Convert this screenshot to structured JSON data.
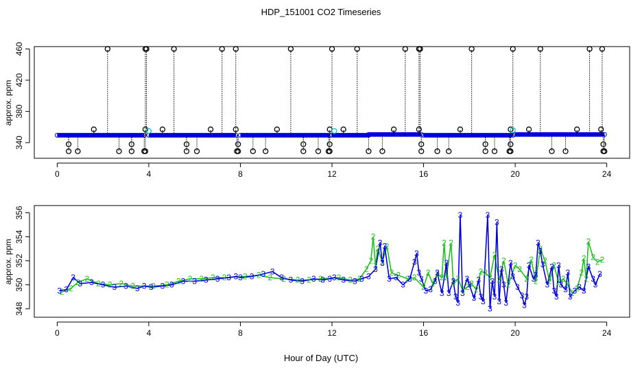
{
  "title": "HDP_151001  CO2 Timeseries",
  "xlabel": "Hour of Day (UTC)",
  "colors": {
    "axis": "#000000",
    "black_series": "#000000",
    "cyan_series": "#00c8d2",
    "green_series": "#1fbf1f",
    "blue_series": "#0000dd"
  },
  "chart_data": [
    {
      "type": "scatter",
      "panel": "top",
      "ylabel": "approx. ppm",
      "xlim": [
        -1,
        25
      ],
      "ylim": [
        320,
        463
      ],
      "xticks": [
        0,
        4,
        8,
        12,
        16,
        20,
        24
      ],
      "yticks": [
        340,
        380,
        420,
        460
      ],
      "baseline_segments": [
        {
          "x0": 0.0,
          "x1": 3.8,
          "y": 349.5
        },
        {
          "x0": 4.0,
          "x1": 7.8,
          "y": 349.5
        },
        {
          "x0": 8.0,
          "x1": 11.9,
          "y": 349.5
        },
        {
          "x0": 12.0,
          "x1": 13.6,
          "y": 349.5
        },
        {
          "x0": 13.6,
          "x1": 15.9,
          "y": 350.5
        },
        {
          "x0": 16.0,
          "x1": 19.9,
          "y": 349.5
        },
        {
          "x0": 20.0,
          "x1": 23.9,
          "y": 350.5
        }
      ],
      "spikes_high": [
        2.2,
        3.85,
        3.9,
        5.1,
        7.2,
        7.8,
        10.2,
        12.0,
        13.1,
        15.2,
        15.8,
        15.85,
        18.1,
        19.9,
        21.1,
        23.25,
        23.8
      ],
      "spikes_mid": [
        1.6,
        3.85,
        4.6,
        6.7,
        7.8,
        9.6,
        11.9,
        12.5,
        14.7,
        15.8,
        17.6,
        19.8,
        20.6,
        22.7,
        23.75
      ],
      "spikes_low": [
        0.5,
        0.9,
        2.7,
        3.25,
        3.8,
        3.85,
        5.65,
        6.1,
        7.85,
        7.9,
        8.55,
        9.1,
        10.75,
        11.4,
        11.85,
        11.9,
        13.6,
        14.2,
        15.9,
        16.6,
        17.1,
        18.7,
        19.1,
        19.75,
        19.8,
        21.6,
        22.2,
        23.85,
        23.9
      ],
      "cyan_points": [
        {
          "x": 4.0,
          "y": 355
        },
        {
          "x": 12.1,
          "y": 355
        },
        {
          "x": 19.9,
          "y": 356
        }
      ]
    },
    {
      "type": "line",
      "panel": "bottom",
      "ylabel": "approx. ppm",
      "xlim": [
        -1,
        25
      ],
      "ylim": [
        347.3,
        356.6
      ],
      "xticks": [
        0,
        4,
        8,
        12,
        16,
        20,
        24
      ],
      "yticks": [
        348,
        350,
        352,
        354,
        356
      ],
      "series": [
        {
          "name": "3",
          "color": "blue",
          "points": [
            [
              0.1,
              349.5
            ],
            [
              0.4,
              349.6
            ],
            [
              0.7,
              350.6
            ],
            [
              1.0,
              350.1
            ],
            [
              1.5,
              350.2
            ],
            [
              2.0,
              350.0
            ],
            [
              2.5,
              349.8
            ],
            [
              3.0,
              349.9
            ],
            [
              3.5,
              349.7
            ],
            [
              3.8,
              349.9
            ],
            [
              4.1,
              349.8
            ],
            [
              4.6,
              349.9
            ],
            [
              5.0,
              350.0
            ],
            [
              5.5,
              350.3
            ],
            [
              6.0,
              350.3
            ],
            [
              6.5,
              350.4
            ],
            [
              7.0,
              350.5
            ],
            [
              7.5,
              350.6
            ],
            [
              7.8,
              350.7
            ],
            [
              8.0,
              350.6
            ],
            [
              8.5,
              350.7
            ],
            [
              9.0,
              350.9
            ],
            [
              9.4,
              351.1
            ],
            [
              9.8,
              350.6
            ],
            [
              10.2,
              350.4
            ],
            [
              10.7,
              350.3
            ],
            [
              11.2,
              350.5
            ],
            [
              11.6,
              350.4
            ],
            [
              11.9,
              350.5
            ],
            [
              12.1,
              350.6
            ],
            [
              12.5,
              350.4
            ],
            [
              13.0,
              350.3
            ],
            [
              13.3,
              350.5
            ],
            [
              13.6,
              350.7
            ],
            [
              13.9,
              351.3
            ],
            [
              14.1,
              353.5
            ],
            [
              14.2,
              351.8
            ],
            [
              14.3,
              353.2
            ],
            [
              14.5,
              350.5
            ],
            [
              14.8,
              350.6
            ],
            [
              15.1,
              350.0
            ],
            [
              15.4,
              350.5
            ],
            [
              15.6,
              351.9
            ],
            [
              15.7,
              352.6
            ],
            [
              15.8,
              351.0
            ],
            [
              15.9,
              350.5
            ],
            [
              16.1,
              349.5
            ],
            [
              16.3,
              349.6
            ],
            [
              16.5,
              350.3
            ],
            [
              16.6,
              351.0
            ],
            [
              16.8,
              349.3
            ],
            [
              17.0,
              351.8
            ],
            [
              17.1,
              349.3
            ],
            [
              17.3,
              350.3
            ],
            [
              17.4,
              349.0
            ],
            [
              17.5,
              348.5
            ],
            [
              17.6,
              355.8
            ],
            [
              17.7,
              349.3
            ],
            [
              17.9,
              350.5
            ],
            [
              18.0,
              350.0
            ],
            [
              18.2,
              348.9
            ],
            [
              18.4,
              350.4
            ],
            [
              18.5,
              349.0
            ],
            [
              18.6,
              348.6
            ],
            [
              18.8,
              355.8
            ],
            [
              18.9,
              348.0
            ],
            [
              19.0,
              350.3
            ],
            [
              19.1,
              349.0
            ],
            [
              19.2,
              355.2
            ],
            [
              19.3,
              348.6
            ],
            [
              19.4,
              351.3
            ],
            [
              19.5,
              350.0
            ],
            [
              19.6,
              348.5
            ],
            [
              19.8,
              351.8
            ],
            [
              19.9,
              350.7
            ],
            [
              20.1,
              349.8
            ],
            [
              20.3,
              349.1
            ],
            [
              20.4,
              348.3
            ],
            [
              20.5,
              349.0
            ],
            [
              20.6,
              351.6
            ],
            [
              20.8,
              350.5
            ],
            [
              20.9,
              350.8
            ],
            [
              21.0,
              353.5
            ],
            [
              21.1,
              352.8
            ],
            [
              21.2,
              351.7
            ],
            [
              21.4,
              350.0
            ],
            [
              21.6,
              351.5
            ],
            [
              21.7,
              349.5
            ],
            [
              21.8,
              349.0
            ],
            [
              21.9,
              351.6
            ],
            [
              22.0,
              350.0
            ],
            [
              22.2,
              349.6
            ],
            [
              22.3,
              351.0
            ],
            [
              22.4,
              349.0
            ],
            [
              22.6,
              349.5
            ],
            [
              22.8,
              349.8
            ],
            [
              23.0,
              349.5
            ],
            [
              23.2,
              351.5
            ],
            [
              23.4,
              350.5
            ],
            [
              23.5,
              350.0
            ],
            [
              23.7,
              350.9
            ]
          ]
        },
        {
          "name": "2",
          "color": "green",
          "points": [
            [
              0.2,
              349.4
            ],
            [
              0.6,
              349.7
            ],
            [
              0.9,
              350.2
            ],
            [
              1.3,
              350.5
            ],
            [
              1.8,
              350.1
            ],
            [
              2.3,
              350.0
            ],
            [
              2.8,
              350.1
            ],
            [
              3.3,
              349.9
            ],
            [
              4.2,
              349.9
            ],
            [
              4.8,
              350.0
            ],
            [
              5.3,
              350.3
            ],
            [
              5.8,
              350.5
            ],
            [
              6.3,
              350.5
            ],
            [
              6.8,
              350.6
            ],
            [
              7.3,
              350.6
            ],
            [
              8.2,
              350.7
            ],
            [
              8.8,
              350.8
            ],
            [
              9.3,
              350.6
            ],
            [
              9.9,
              350.5
            ],
            [
              10.5,
              350.4
            ],
            [
              11.0,
              350.4
            ],
            [
              11.5,
              350.5
            ],
            [
              12.3,
              350.6
            ],
            [
              12.8,
              350.4
            ],
            [
              13.2,
              350.5
            ],
            [
              13.5,
              351.3
            ],
            [
              13.7,
              352.0
            ],
            [
              13.8,
              354.0
            ],
            [
              13.9,
              351.6
            ],
            [
              14.0,
              353.0
            ],
            [
              14.2,
              351.9
            ],
            [
              14.4,
              353.2
            ],
            [
              14.6,
              351.0
            ],
            [
              14.9,
              350.8
            ],
            [
              15.3,
              350.5
            ],
            [
              15.6,
              350.6
            ],
            [
              16.0,
              349.8
            ],
            [
              16.2,
              351.0
            ],
            [
              16.4,
              350.1
            ],
            [
              16.6,
              350.9
            ],
            [
              16.8,
              350.6
            ],
            [
              16.9,
              353.5
            ],
            [
              17.0,
              350.6
            ],
            [
              17.2,
              353.5
            ],
            [
              17.3,
              350.2
            ],
            [
              17.5,
              350.5
            ],
            [
              17.7,
              349.6
            ],
            [
              17.9,
              349.8
            ],
            [
              18.1,
              350.1
            ],
            [
              18.3,
              349.6
            ],
            [
              18.5,
              351.1
            ],
            [
              18.7,
              351.0
            ],
            [
              18.9,
              350.6
            ],
            [
              19.1,
              352.5
            ],
            [
              19.3,
              350.4
            ],
            [
              19.5,
              352.0
            ],
            [
              19.7,
              350.0
            ],
            [
              20.0,
              351.6
            ],
            [
              20.2,
              351.3
            ],
            [
              20.5,
              350.5
            ],
            [
              20.7,
              352.1
            ],
            [
              20.9,
              350.3
            ],
            [
              21.1,
              353.0
            ],
            [
              21.3,
              352.0
            ],
            [
              21.5,
              350.3
            ],
            [
              21.7,
              351.6
            ],
            [
              21.9,
              350.2
            ],
            [
              22.1,
              350.5
            ],
            [
              22.3,
              350.0
            ],
            [
              22.5,
              349.3
            ],
            [
              22.7,
              349.7
            ],
            [
              22.9,
              351.0
            ],
            [
              23.0,
              352.2
            ],
            [
              23.1,
              350.5
            ],
            [
              23.2,
              353.6
            ],
            [
              23.4,
              352.3
            ],
            [
              23.6,
              351.9
            ],
            [
              23.8,
              352.1
            ]
          ]
        }
      ]
    }
  ]
}
